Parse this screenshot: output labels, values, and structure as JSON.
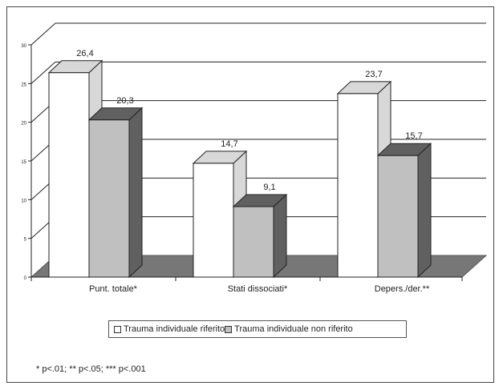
{
  "chart_data": {
    "type": "bar",
    "three_d": true,
    "categories": [
      "Punt. totale*",
      "Stati dissociati*",
      "Depers./der.**"
    ],
    "series": [
      {
        "name": "Trauma individuale riferito",
        "values": [
          26.4,
          14.7,
          23.7
        ],
        "labels": [
          "26,4",
          "14,7",
          "23,7"
        ],
        "color": "#ffffff",
        "side_color": "#d8d8d8"
      },
      {
        "name": "Trauma individuale non riferito",
        "values": [
          20.3,
          9.1,
          15.7
        ],
        "labels": [
          "20,3",
          "9,1",
          "15,7"
        ],
        "color": "#c0c0c0",
        "side_color": "#606060"
      }
    ],
    "yticks": [
      "0",
      "5",
      "10",
      "15",
      "20",
      "25",
      "30"
    ],
    "ylim": [
      0,
      30
    ],
    "grid": true,
    "floor_color": "#777777",
    "legend_position": "bottom"
  },
  "footnote": "* p<.01; ** p<.05; *** p<.001"
}
